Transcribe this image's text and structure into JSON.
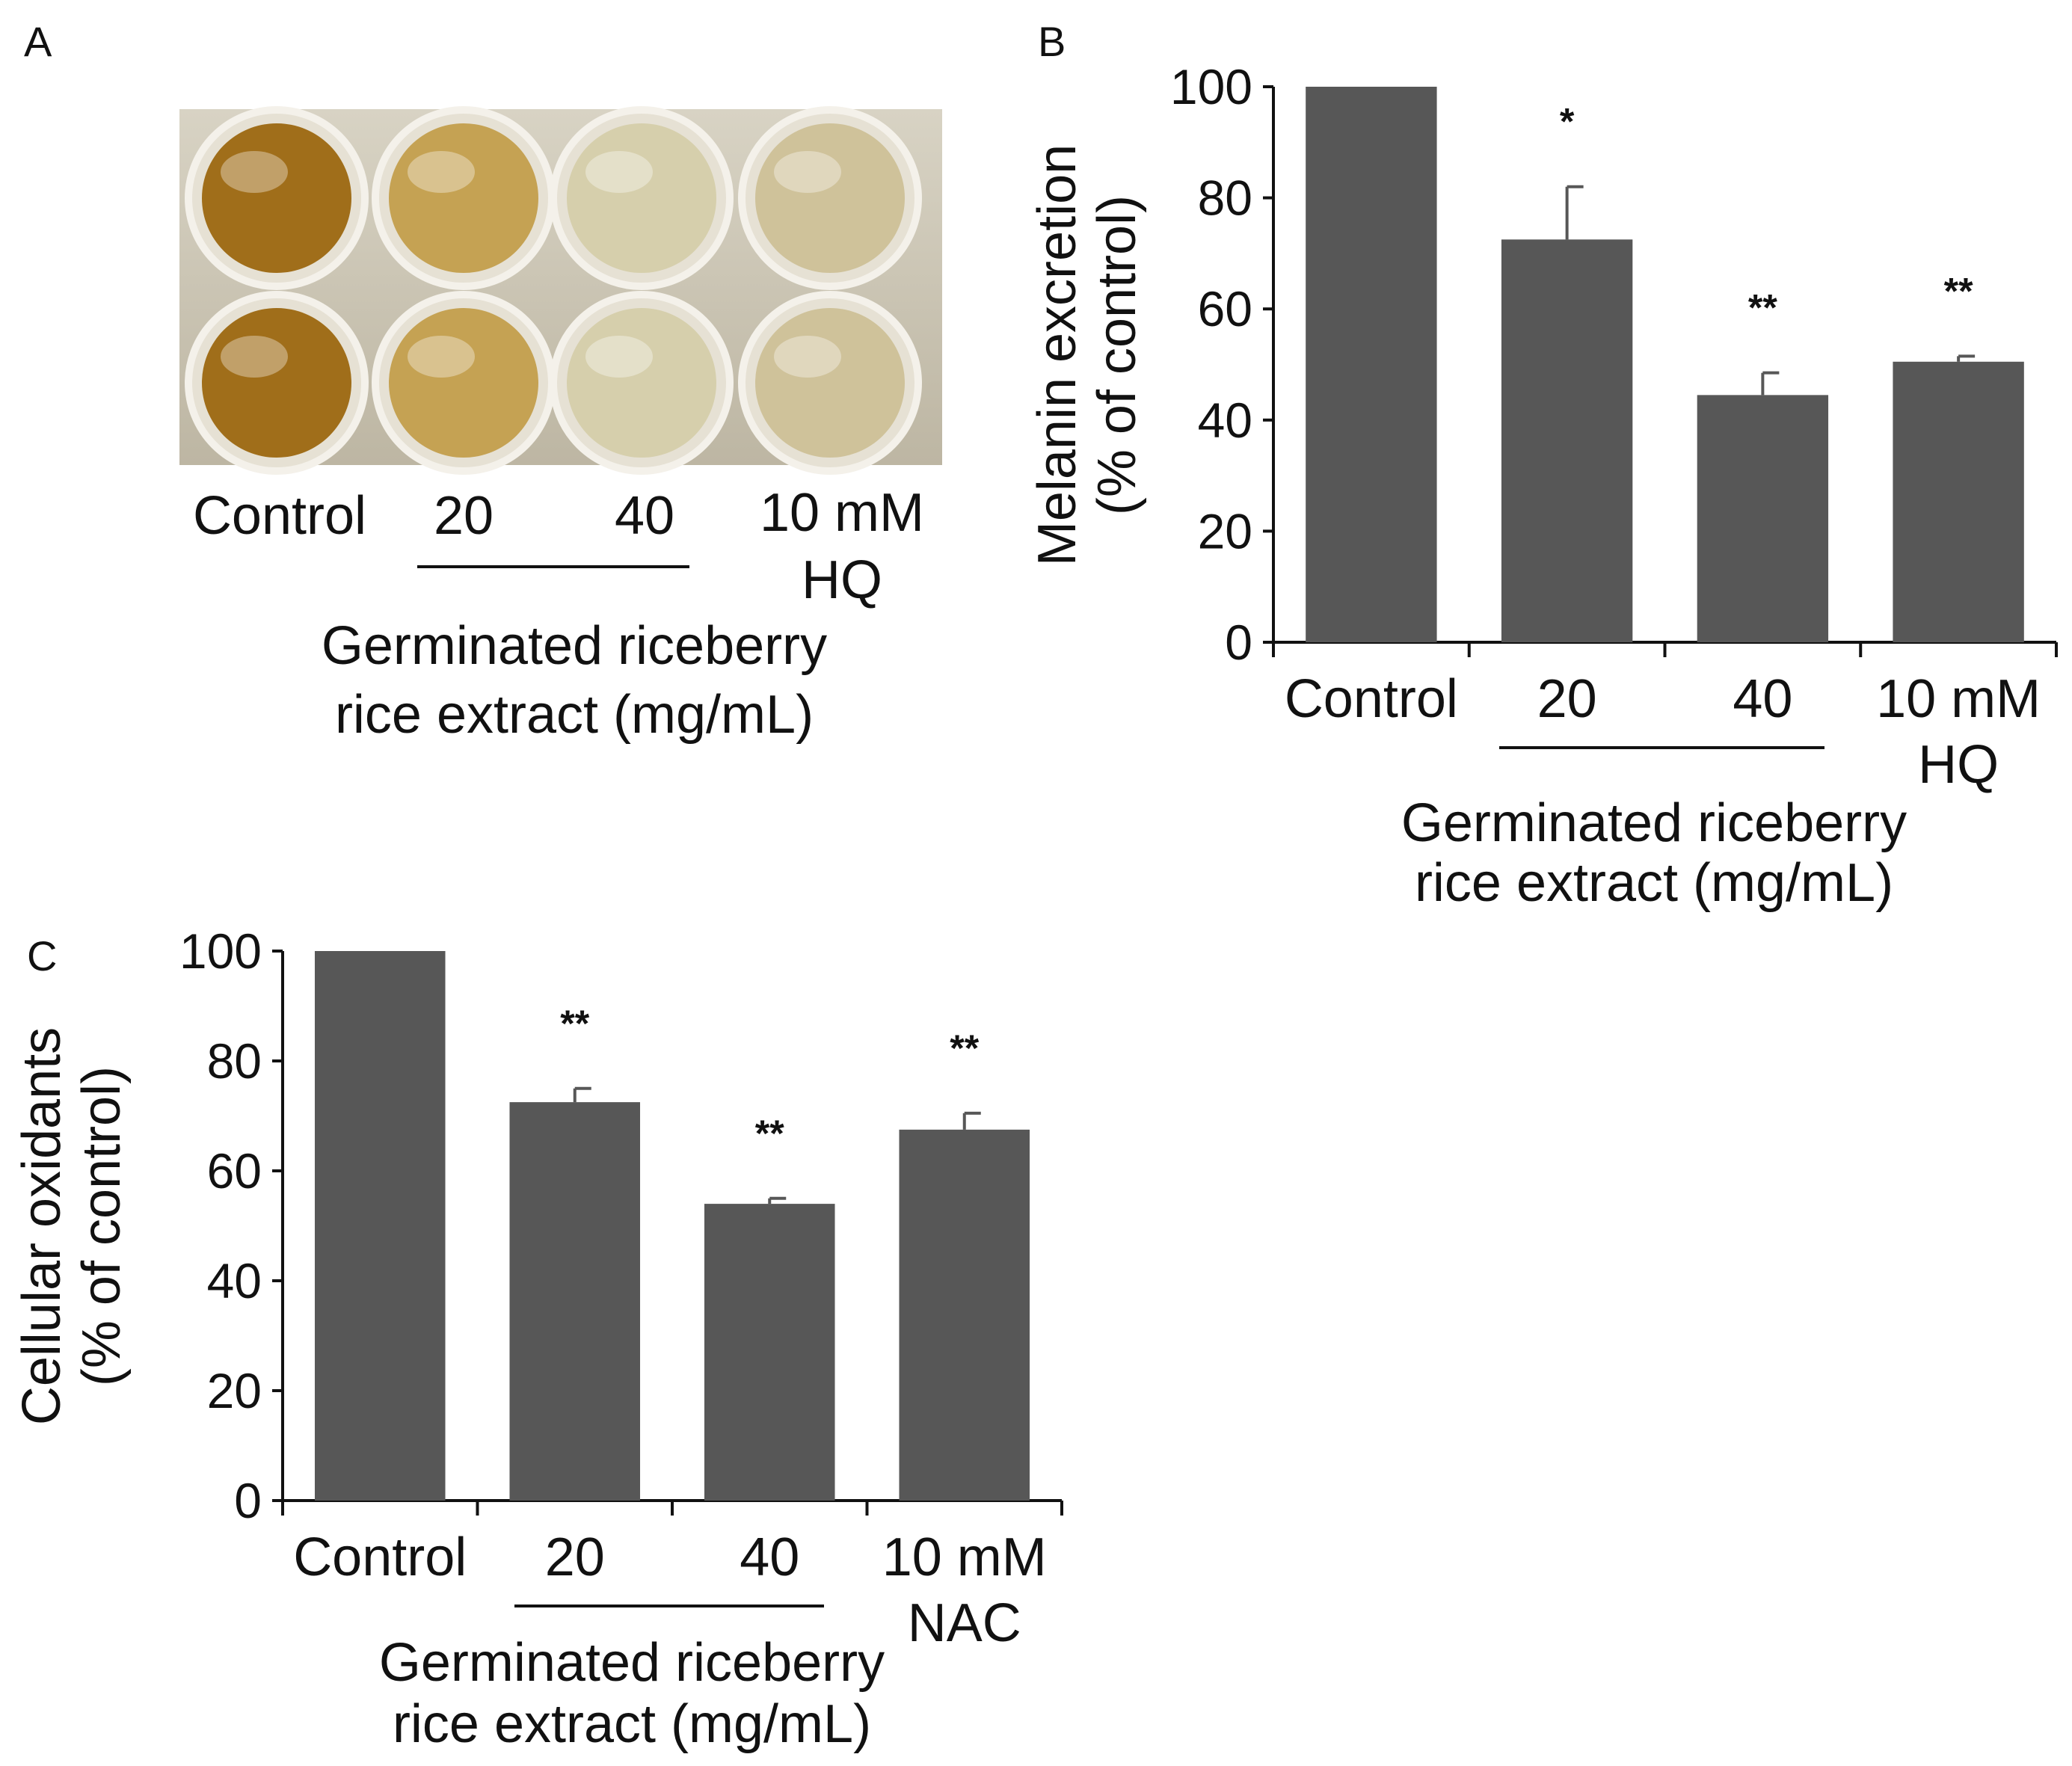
{
  "colors": {
    "bar": "#575757",
    "axis": "#111111",
    "plate_bg": "#c9c3b2"
  },
  "panel_a": {
    "letter": "A",
    "labels": [
      "Control",
      "20",
      "40",
      "10 mM",
      "HQ"
    ],
    "group_label": [
      "Germinated riceberry",
      "rice extract (mg/mL)"
    ],
    "wells": [
      {
        "name": "Control",
        "tint": "#a06e1a"
      },
      {
        "name": "20",
        "tint": "#c5a253"
      },
      {
        "name": "40",
        "tint": "#d6cfac"
      },
      {
        "name": "10 mM HQ",
        "tint": "#cfc29a"
      }
    ]
  },
  "chart_data": [
    {
      "panel": "B",
      "type": "bar",
      "categories": [
        "Control",
        "20",
        "40",
        "10 mM HQ"
      ],
      "category_lines": [
        [
          "Control"
        ],
        [
          "20"
        ],
        [
          "40"
        ],
        [
          "10 mM",
          "HQ"
        ]
      ],
      "values": [
        100,
        72.5,
        44.5,
        50.5
      ],
      "errors": [
        0,
        9.5,
        4,
        1
      ],
      "significance": [
        "",
        "*",
        "**",
        "**"
      ],
      "ylabel": [
        "Melanin excretion",
        "(% of control)"
      ],
      "yticks": [
        0,
        20,
        40,
        60,
        80,
        100
      ],
      "ylim": [
        0,
        100
      ],
      "group_label": [
        "Germinated riceberry",
        "rice extract (mg/mL)"
      ]
    },
    {
      "panel": "C",
      "type": "bar",
      "categories": [
        "Control",
        "20",
        "40",
        "10 mM NAC"
      ],
      "category_lines": [
        [
          "Control"
        ],
        [
          "20"
        ],
        [
          "40"
        ],
        [
          "10 mM",
          "NAC"
        ]
      ],
      "values": [
        100,
        72.5,
        54,
        67.5
      ],
      "errors": [
        0,
        2.5,
        1,
        3
      ],
      "significance": [
        "",
        "**",
        "**",
        "**"
      ],
      "ylabel": [
        "Cellular oxidants",
        "(% of control)"
      ],
      "yticks": [
        0,
        20,
        40,
        60,
        80,
        100
      ],
      "ylim": [
        0,
        100
      ],
      "group_label": [
        "Germinated riceberry",
        "rice extract (mg/mL)"
      ]
    }
  ]
}
